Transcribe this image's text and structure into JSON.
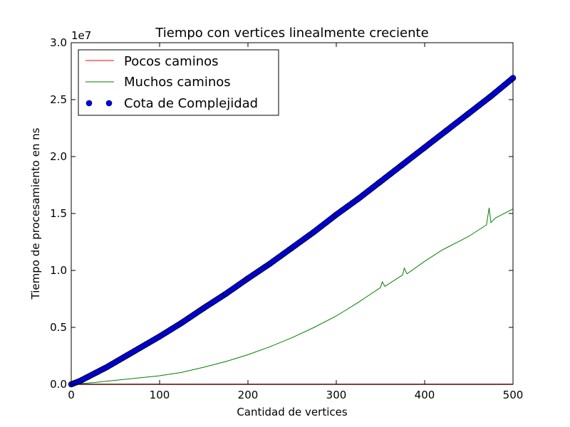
{
  "chart_data": {
    "type": "line",
    "title": "Tiempo con vertices linealmente creciente",
    "xlabel": "Cantidad de vertices",
    "ylabel": "Tiempo de procesamiento en ns",
    "y_offset_label": "1e7",
    "xlim": [
      0,
      500
    ],
    "ylim": [
      0,
      30000000
    ],
    "x_ticks": [
      0,
      100,
      200,
      300,
      400,
      500
    ],
    "x_tick_labels": [
      "0",
      "100",
      "200",
      "300",
      "400",
      "500"
    ],
    "y_ticks": [
      0,
      5000000,
      10000000,
      15000000,
      20000000,
      25000000,
      30000000
    ],
    "y_tick_labels": [
      "0.0",
      "0.5",
      "1.0",
      "1.5",
      "2.0",
      "2.5",
      "3.0"
    ],
    "grid": false,
    "legend_position": "top-left",
    "series": [
      {
        "name": "Pocos caminos",
        "style": "line",
        "color": "#ff0000",
        "x": [
          0,
          100,
          200,
          300,
          400,
          500
        ],
        "y": [
          0,
          0,
          0,
          0,
          0,
          0
        ]
      },
      {
        "name": "Muchos caminos",
        "style": "line",
        "color": "#008000",
        "x": [
          0,
          25,
          50,
          75,
          100,
          125,
          150,
          175,
          200,
          225,
          250,
          275,
          300,
          325,
          350,
          352,
          355,
          375,
          377,
          380,
          400,
          420,
          425,
          440,
          450,
          470,
          473,
          475,
          480,
          500
        ],
        "y": [
          0,
          150000,
          350000,
          550000,
          750000,
          1050000,
          1500000,
          2000000,
          2600000,
          3300000,
          4100000,
          5000000,
          6000000,
          7200000,
          8500000,
          9000000,
          8600000,
          9600000,
          10200000,
          9700000,
          10800000,
          11800000,
          12000000,
          12600000,
          13000000,
          14000000,
          15500000,
          14200000,
          14600000,
          15400000
        ]
      },
      {
        "name": "Cota de Complejidad",
        "style": "markers",
        "color": "#0000ff",
        "x": [
          0,
          10,
          20,
          40,
          60,
          80,
          100,
          125,
          150,
          175,
          200,
          225,
          250,
          275,
          300,
          325,
          350,
          375,
          400,
          425,
          450,
          475,
          500
        ],
        "y": [
          0,
          300000,
          700000,
          1500000,
          2400000,
          3300000,
          4200000,
          5400000,
          6700000,
          7950000,
          9300000,
          10600000,
          12000000,
          13400000,
          14900000,
          16300000,
          17800000,
          19300000,
          20800000,
          22300000,
          23800000,
          25300000,
          26900000
        ]
      }
    ]
  }
}
